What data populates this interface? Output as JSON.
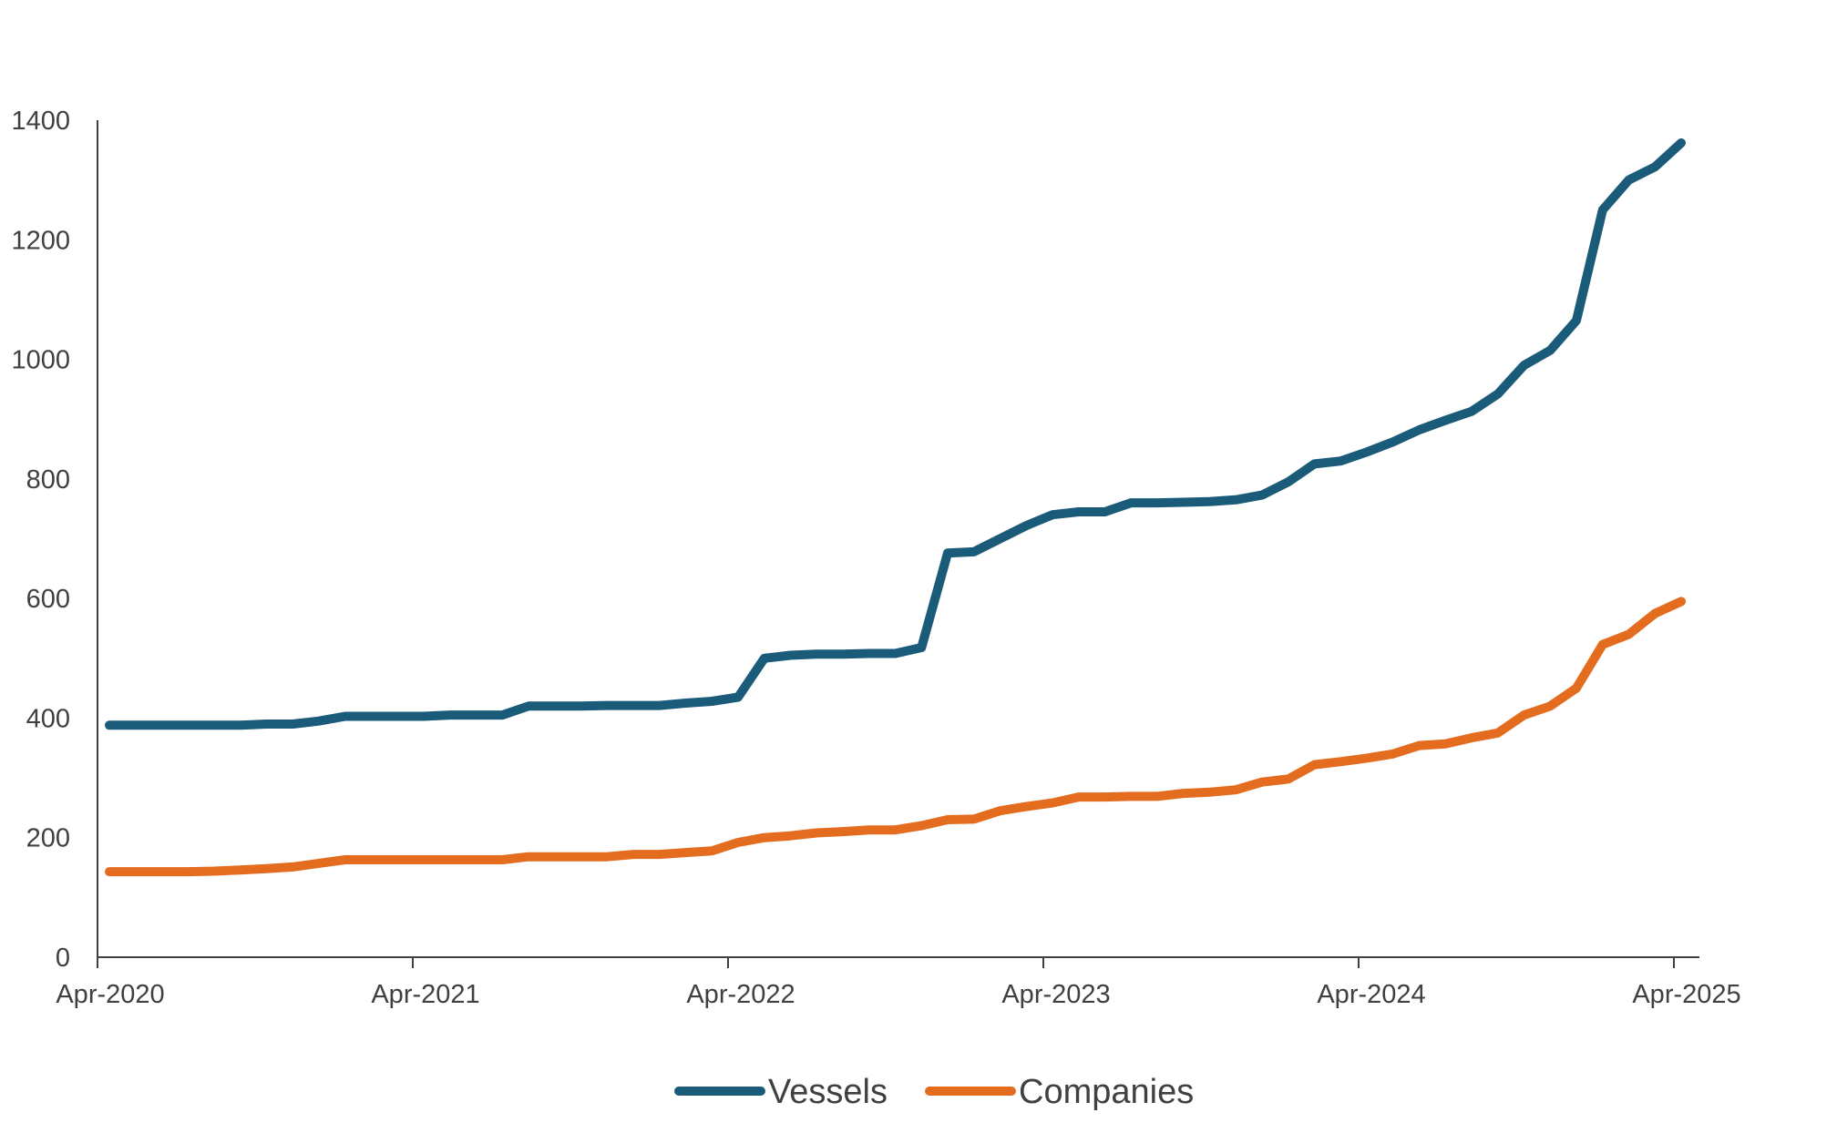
{
  "chart_data": {
    "type": "line",
    "title": "",
    "xlabel": "",
    "ylabel": "",
    "x_start": "2020-04",
    "x_step": "month",
    "x_ticks": [
      "Apr-2020",
      "Apr-2021",
      "Apr-2022",
      "Apr-2023",
      "Apr-2024",
      "Apr-2025"
    ],
    "y_ticks": [
      0,
      200,
      400,
      600,
      800,
      1000,
      1200,
      1400
    ],
    "ylim": [
      0,
      1400
    ],
    "grid": false,
    "legend": "bottom-center",
    "series": [
      {
        "name": "Vessels",
        "color": "#1a5b7a",
        "values": [
          388,
          388,
          388,
          388,
          388,
          388,
          390,
          390,
          395,
          403,
          403,
          403,
          403,
          405,
          405,
          405,
          420,
          420,
          420,
          421,
          421,
          421,
          425,
          428,
          435,
          500,
          505,
          507,
          507,
          508,
          508,
          518,
          676,
          678,
          700,
          722,
          740,
          745,
          745,
          760,
          760,
          761,
          762,
          765,
          773,
          795,
          825,
          830,
          845,
          862,
          882,
          898,
          913,
          942,
          990,
          1015,
          1065,
          1250,
          1300,
          1322,
          1362
        ]
      },
      {
        "name": "Companies",
        "color": "#e36c1e",
        "values": [
          143,
          143,
          143,
          143,
          144,
          146,
          148,
          151,
          157,
          163,
          163,
          163,
          163,
          163,
          163,
          163,
          168,
          168,
          168,
          168,
          172,
          172,
          175,
          178,
          192,
          200,
          203,
          208,
          210,
          213,
          213,
          220,
          230,
          231,
          245,
          252,
          258,
          268,
          268,
          269,
          269,
          274,
          276,
          280,
          293,
          298,
          322,
          327,
          333,
          340,
          354,
          357,
          367,
          375,
          405,
          420,
          450,
          523,
          540,
          575,
          595
        ]
      }
    ]
  }
}
